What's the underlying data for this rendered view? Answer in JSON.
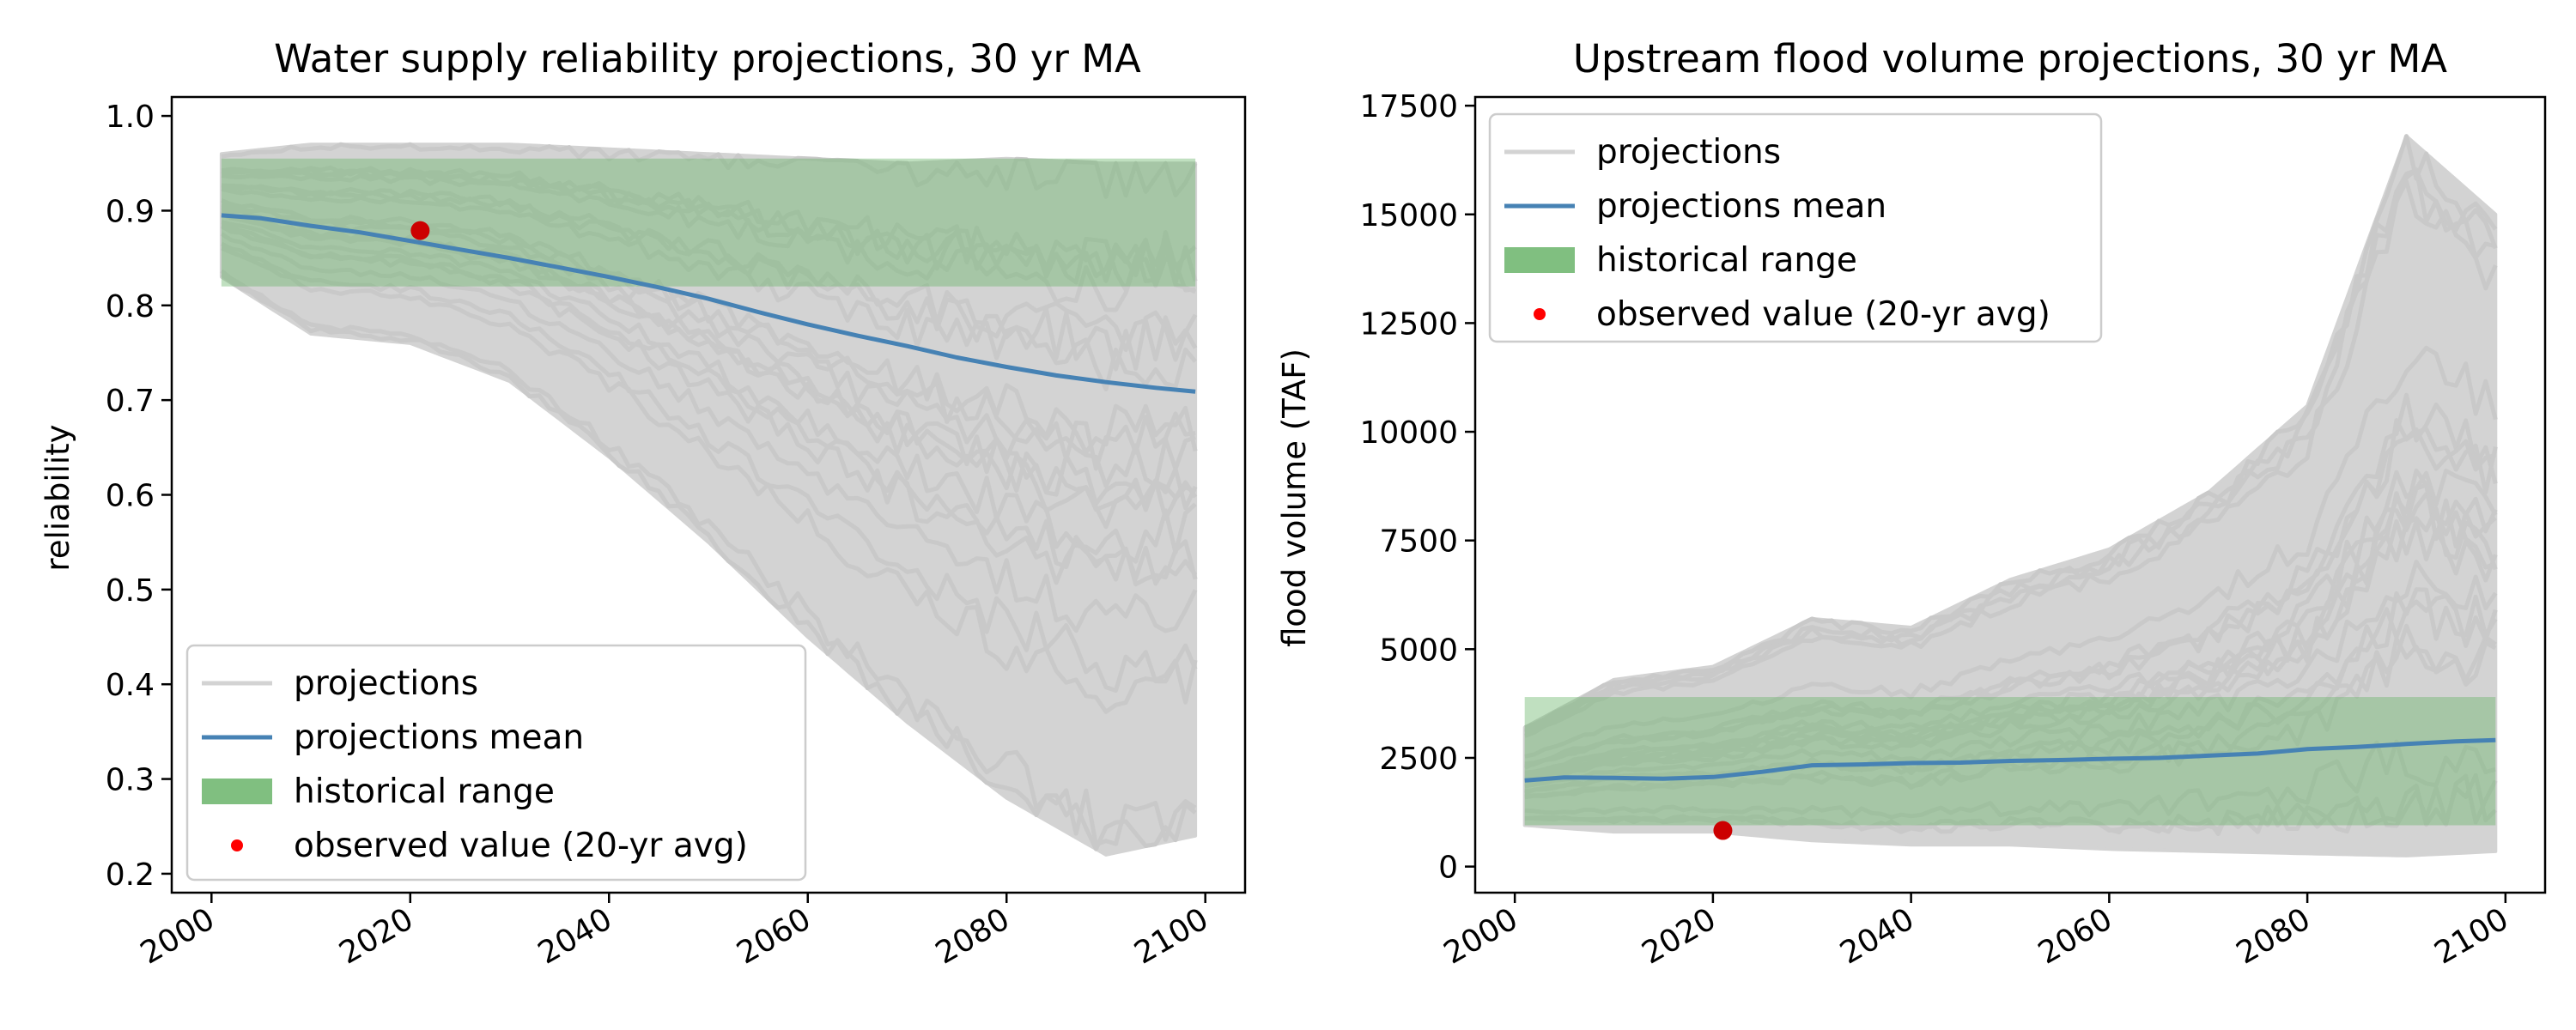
{
  "chart_data": [
    {
      "type": "line",
      "title": "Water supply reliability projections, 30 yr MA",
      "xlabel": "",
      "ylabel": "reliability",
      "xlim": [
        1996,
        2104
      ],
      "ylim": [
        0.18,
        1.02
      ],
      "xticks": [
        2000,
        2020,
        2040,
        2060,
        2080,
        2100
      ],
      "xtick_labels": [
        "2000",
        "2020",
        "2040",
        "2060",
        "2080",
        "2100"
      ],
      "yticks": [
        0.2,
        0.3,
        0.4,
        0.5,
        0.6,
        0.7,
        0.8,
        0.9,
        1.0
      ],
      "ytick_labels": [
        "0.2",
        "0.3",
        "0.4",
        "0.5",
        "0.6",
        "0.7",
        "0.8",
        "0.9",
        "1.0"
      ],
      "x_range": [
        2001,
        2099
      ],
      "historical_range": {
        "x": [
          2001,
          2099
        ],
        "y": [
          0.82,
          0.955
        ]
      },
      "projections_envelope": {
        "x": [
          2001,
          2010,
          2020,
          2030,
          2040,
          2050,
          2060,
          2070,
          2080,
          2090,
          2099
        ],
        "upper": [
          0.96,
          0.97,
          0.97,
          0.97,
          0.965,
          0.96,
          0.955,
          0.95,
          0.955,
          0.95,
          0.95
        ],
        "lower": [
          0.83,
          0.77,
          0.76,
          0.72,
          0.64,
          0.55,
          0.45,
          0.36,
          0.28,
          0.22,
          0.24
        ]
      },
      "series": [
        {
          "name": "projections mean",
          "x": [
            2001,
            2005,
            2010,
            2015,
            2020,
            2025,
            2030,
            2035,
            2040,
            2045,
            2050,
            2055,
            2060,
            2065,
            2070,
            2075,
            2080,
            2085,
            2090,
            2095,
            2099
          ],
          "y": [
            0.895,
            0.892,
            0.884,
            0.877,
            0.868,
            0.859,
            0.85,
            0.84,
            0.83,
            0.819,
            0.807,
            0.793,
            0.78,
            0.768,
            0.757,
            0.745,
            0.735,
            0.726,
            0.719,
            0.713,
            0.709
          ]
        }
      ],
      "observed": {
        "name": "observed value (20-yr avg)",
        "x": 2021,
        "y": 0.879
      },
      "legend": {
        "placement": "lower-left",
        "entries": [
          "projections",
          "projections mean",
          "historical range",
          "observed value (20-yr avg)"
        ]
      },
      "grid": false
    },
    {
      "type": "line",
      "title": "Upstream flood volume projections, 30 yr MA",
      "xlabel": "",
      "ylabel": "flood volume (TAF)",
      "xlim": [
        1996,
        2104
      ],
      "ylim": [
        -600,
        17700
      ],
      "xticks": [
        2000,
        2020,
        2040,
        2060,
        2080,
        2100
      ],
      "xtick_labels": [
        "2000",
        "2020",
        "2040",
        "2060",
        "2080",
        "2100"
      ],
      "yticks": [
        0,
        2500,
        5000,
        7500,
        10000,
        12500,
        15000,
        17500
      ],
      "ytick_labels": [
        "0",
        "2500",
        "5000",
        "7500",
        "10000",
        "12500",
        "15000",
        "17500"
      ],
      "x_range": [
        2001,
        2099
      ],
      "historical_range": {
        "x": [
          2001,
          2099
        ],
        "y": [
          950,
          3900
        ]
      },
      "projections_envelope": {
        "x": [
          2001,
          2010,
          2020,
          2030,
          2040,
          2050,
          2060,
          2070,
          2080,
          2090,
          2099
        ],
        "upper": [
          3200,
          4300,
          4600,
          5700,
          5500,
          6600,
          7300,
          8600,
          10600,
          16800,
          15000
        ],
        "lower": [
          950,
          800,
          800,
          600,
          500,
          500,
          400,
          350,
          300,
          250,
          350
        ]
      },
      "series": [
        {
          "name": "projections mean",
          "x": [
            2001,
            2005,
            2010,
            2015,
            2020,
            2025,
            2030,
            2035,
            2040,
            2045,
            2050,
            2055,
            2060,
            2065,
            2070,
            2075,
            2080,
            2085,
            2090,
            2095,
            2099
          ],
          "y": [
            1980,
            2050,
            2040,
            2020,
            2060,
            2180,
            2330,
            2350,
            2380,
            2390,
            2430,
            2450,
            2480,
            2500,
            2550,
            2600,
            2700,
            2750,
            2820,
            2880,
            2910
          ]
        }
      ],
      "observed": {
        "name": "observed value (20-yr avg)",
        "x": 2021,
        "y": 830
      },
      "legend": {
        "placement": "upper-left",
        "entries": [
          "projections",
          "projections mean",
          "historical range",
          "observed value (20-yr avg)"
        ]
      },
      "grid": false
    }
  ],
  "colors": {
    "projections": "#d3d3d3",
    "mean": "#4682b4",
    "historical": "#6ab46a",
    "observed": "#cc0000",
    "observed_legend": "#ff0000"
  }
}
